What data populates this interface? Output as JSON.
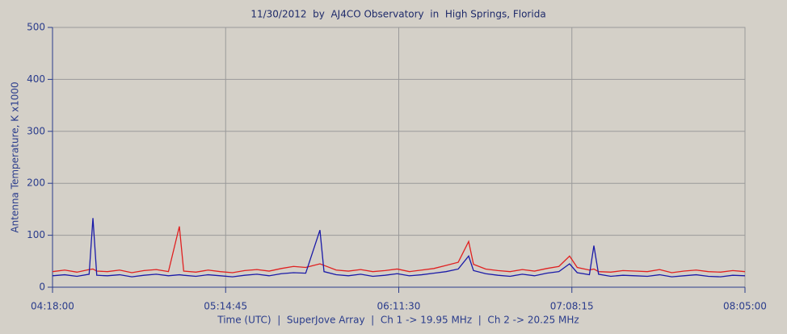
{
  "chart_data": {
    "type": "line",
    "title": "11/30/2012  by  AJ4CO Observatory  in  High Springs, Florida",
    "x_label": "Time (UTC)  |  SuperJove Array  |  Ch 1 -> 19.95 MHz  |  Ch 2 -> 20.25 MHz",
    "y_label": "Antenna Temperature, K x1000",
    "x": [
      "04:18:00",
      "04:22:00",
      "04:26:00",
      "04:30:00",
      "04:31:15",
      "04:32:30",
      "04:36:00",
      "04:40:00",
      "04:44:00",
      "04:48:00",
      "04:52:00",
      "04:56:00",
      "04:59:35",
      "05:01:00",
      "05:05:00",
      "05:09:00",
      "05:13:00",
      "05:17:00",
      "05:21:00",
      "05:25:00",
      "05:29:00",
      "05:33:00",
      "05:37:00",
      "05:41:00",
      "05:45:40",
      "05:47:00",
      "05:51:00",
      "05:55:00",
      "05:59:00",
      "06:03:00",
      "06:07:00",
      "06:11:00",
      "06:15:00",
      "06:19:00",
      "06:23:00",
      "06:27:00",
      "06:31:00",
      "06:34:25",
      "06:36:00",
      "06:40:00",
      "06:44:00",
      "06:48:00",
      "06:52:00",
      "06:56:00",
      "07:00:00",
      "07:04:00",
      "07:07:30",
      "07:10:00",
      "07:14:00",
      "07:15:28",
      "07:17:00",
      "07:21:00",
      "07:25:00",
      "07:29:00",
      "07:33:00",
      "07:37:00",
      "07:41:00",
      "07:45:00",
      "07:49:00",
      "07:53:00",
      "07:57:00",
      "08:01:00",
      "08:05:00"
    ],
    "series": [
      {
        "color": "#e02020",
        "values": [
          30,
          33,
          29,
          34,
          35,
          31,
          30,
          33,
          28,
          32,
          34,
          30,
          117,
          31,
          29,
          33,
          30,
          28,
          32,
          34,
          31,
          36,
          40,
          38,
          45,
          42,
          33,
          31,
          34,
          30,
          32,
          35,
          30,
          33,
          36,
          42,
          48,
          88,
          44,
          35,
          32,
          30,
          34,
          31,
          36,
          40,
          60,
          38,
          33,
          35,
          30,
          29,
          32,
          31,
          30,
          34,
          28,
          31,
          33,
          30,
          29,
          32,
          30
        ]
      },
      {
        "color": "#1a1aa8",
        "values": [
          22,
          24,
          21,
          25,
          133,
          23,
          22,
          24,
          20,
          23,
          25,
          22,
          24,
          23,
          21,
          24,
          22,
          20,
          23,
          25,
          22,
          26,
          28,
          27,
          110,
          30,
          24,
          22,
          25,
          21,
          23,
          26,
          22,
          24,
          27,
          30,
          35,
          60,
          32,
          26,
          23,
          21,
          25,
          22,
          27,
          30,
          45,
          28,
          24,
          80,
          25,
          21,
          23,
          22,
          21,
          24,
          20,
          22,
          24,
          21,
          20,
          23,
          22
        ]
      }
    ],
    "xlim": [
      "04:18:00",
      "08:05:00"
    ],
    "xticks": [
      "04:18:00",
      "05:14:45",
      "06:11:30",
      "07:08:15",
      "08:05:00"
    ],
    "ylim": [
      0,
      500
    ],
    "yticks": [
      0,
      100,
      200,
      300,
      400,
      500
    ],
    "grid": true
  }
}
